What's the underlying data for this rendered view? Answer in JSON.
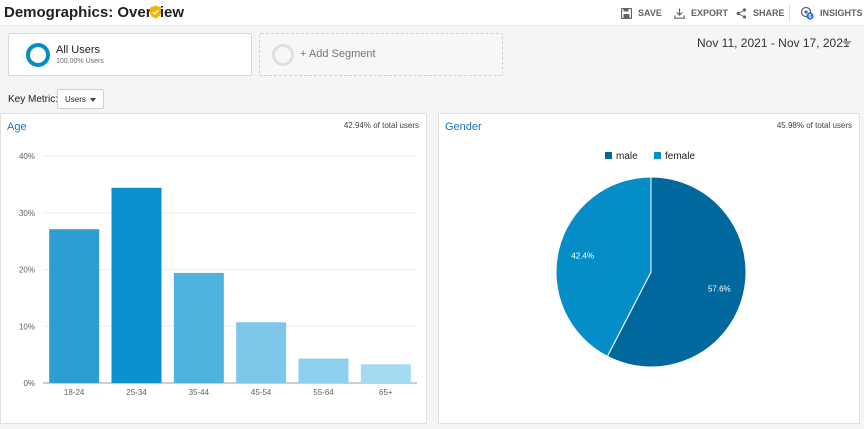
{
  "header": {
    "title": "Demographics: Overview",
    "save_label": "SAVE",
    "export_label": "EXPORT",
    "share_label": "SHARE",
    "insights_label": "INSIGHTS",
    "insights_badge": "6"
  },
  "segments": {
    "active": {
      "name": "All Users",
      "percent": "100.00% Users",
      "color": "#058dc7"
    },
    "add_label": "+ Add Segment"
  },
  "date_range": "Nov 11, 2021 - Nov 17, 2021",
  "key_metric": {
    "label": "Key Metric:",
    "selected": "Users"
  },
  "age_panel": {
    "title": "Age",
    "share_of_total": "42.94% of total users"
  },
  "gender_panel": {
    "title": "Gender",
    "share_of_total": "45.98% of total users"
  },
  "chart_data": [
    {
      "type": "bar",
      "title": "Age",
      "categories": [
        "18-24",
        "25-34",
        "35-44",
        "45-54",
        "55-64",
        "65+"
      ],
      "values": [
        27.1,
        34.4,
        19.4,
        10.7,
        4.3,
        3.3
      ],
      "value_unit": "%",
      "ylim": [
        0,
        40
      ],
      "yticks": [
        "0%",
        "10%",
        "20%",
        "30%",
        "40%"
      ],
      "grid": true,
      "colors": [
        "#2d9ed4",
        "#0b8fcf",
        "#4fb3e0",
        "#7cc7ea",
        "#8dd0ee",
        "#a2daf2"
      ]
    },
    {
      "type": "pie",
      "title": "Gender",
      "labels": [
        "male",
        "female"
      ],
      "values": [
        57.6,
        42.4
      ],
      "value_labels": [
        "57.6%",
        "42.4%"
      ],
      "colors": [
        "#00689c",
        "#058dc7"
      ],
      "legend_position": "top"
    }
  ]
}
